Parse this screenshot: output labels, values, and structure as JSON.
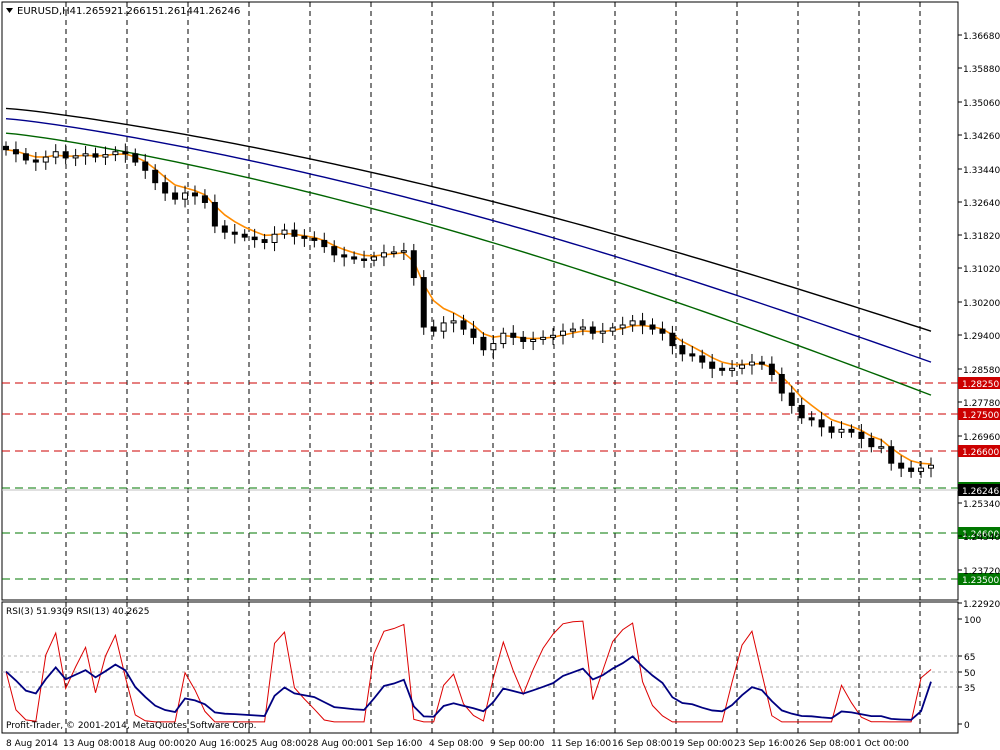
{
  "window": {
    "symbol_label": "EURUSD,H4",
    "ohlc": [
      "1.26592",
      "1.26615",
      "1.26144",
      "1.26246"
    ],
    "menu_icon": "triangle-down-icon"
  },
  "indicator_header": "RSI(3) 51.9309  RSI(13) 40.2625",
  "copyright": "Profit-Trader, © 2001-2014, MetaQuotes Software Corp.",
  "price_axis": {
    "ticks": [
      "1.36680",
      "1.35880",
      "1.35060",
      "1.34260",
      "1.33440",
      "1.32640",
      "1.31820",
      "1.31020",
      "1.30200",
      "1.29400",
      "1.28580",
      "1.27780",
      "1.26960",
      "1.25340",
      "1.24540",
      "1.23720",
      "1.22920"
    ],
    "current_price": "1.26246"
  },
  "rsi_axis": {
    "ticks": [
      "100",
      "65",
      "50",
      "35",
      "0"
    ],
    "levels": [
      65,
      50,
      35
    ]
  },
  "levels": [
    {
      "label": "1.28250",
      "kind": "resistance",
      "color": "#cc0000"
    },
    {
      "label": "1.27500",
      "kind": "resistance",
      "color": "#cc0000"
    },
    {
      "label": "1.26600",
      "kind": "resistance",
      "color": "#cc0000"
    },
    {
      "label": "1.25700",
      "kind": "support",
      "color": "#007700"
    },
    {
      "label": "1.24600",
      "kind": "support",
      "color": "#007700"
    },
    {
      "label": "1.23500",
      "kind": "support",
      "color": "#007700"
    }
  ],
  "time_axis": [
    "8 Aug 2014",
    "13 Aug 08:00",
    "18 Aug 00:00",
    "20 Aug 16:00",
    "25 Aug 08:00",
    "28 Aug 00:00",
    "1 Sep 16:00",
    "4 Sep 08:00",
    "9 Sep 00:00",
    "11 Sep 16:00",
    "16 Sep 08:00",
    "19 Sep 00:00",
    "23 Sep 16:00",
    "26 Sep 08:00",
    "1 Oct 00:00"
  ],
  "colors": {
    "ma_fast": "#ff8c00",
    "ma_green": "#006400",
    "ma_blue": "#00008b",
    "ma_black": "#000000",
    "rsi_fast": "#dd0000",
    "rsi_slow": "#000080",
    "resistance": "#cc0000",
    "support": "#007700"
  },
  "chart_data": {
    "type": "candlestick",
    "symbol": "EURUSD",
    "timeframe": "H4",
    "last_bar": {
      "open": 1.26592,
      "high": 1.26615,
      "low": 1.26144,
      "close": 1.26246
    },
    "y_range": [
      1.2292,
      1.3668
    ],
    "grid": true,
    "closes_approx": [
      1.339,
      1.338,
      1.3365,
      1.336,
      1.3372,
      1.3385,
      1.337,
      1.3375,
      1.338,
      1.3372,
      1.3378,
      1.3385,
      1.338,
      1.336,
      1.334,
      1.331,
      1.3285,
      1.327,
      1.3285,
      1.3278,
      1.3262,
      1.3205,
      1.319,
      1.3185,
      1.3178,
      1.3172,
      1.3165,
      1.3185,
      1.3195,
      1.318,
      1.3175,
      1.317,
      1.3155,
      1.3135,
      1.313,
      1.3125,
      1.3122,
      1.313,
      1.314,
      1.3142,
      1.3145,
      1.308,
      1.296,
      1.295,
      1.297,
      1.2975,
      1.2955,
      1.2935,
      1.2905,
      1.292,
      1.2945,
      1.2935,
      1.2925,
      1.293,
      1.2935,
      1.294,
      1.295,
      1.2955,
      1.296,
      1.2945,
      1.295,
      1.2958,
      1.2965,
      1.2975,
      1.2965,
      1.2955,
      1.2945,
      1.2915,
      1.2895,
      1.289,
      1.2875,
      1.286,
      1.2855,
      1.286,
      1.2868,
      1.2875,
      1.287,
      1.2845,
      1.28,
      1.277,
      1.274,
      1.2735,
      1.2718,
      1.2705,
      1.2712,
      1.2705,
      1.269,
      1.267,
      1.267,
      1.263,
      1.2618,
      1.261,
      1.2618,
      1.2625
    ],
    "moving_averages": [
      {
        "color": "orange",
        "start": 1.3395,
        "end": 1.2628
      },
      {
        "color": "green",
        "start": 1.343,
        "end": 1.2795
      },
      {
        "color": "blue",
        "start": 1.3465,
        "end": 1.2875
      },
      {
        "color": "black",
        "start": 1.349,
        "end": 1.295
      }
    ],
    "rsi": [
      {
        "period": 3,
        "last": 51.9309
      },
      {
        "period": 13,
        "last": 40.2625
      }
    ],
    "rsi_levels": [
      65,
      50,
      35
    ]
  }
}
